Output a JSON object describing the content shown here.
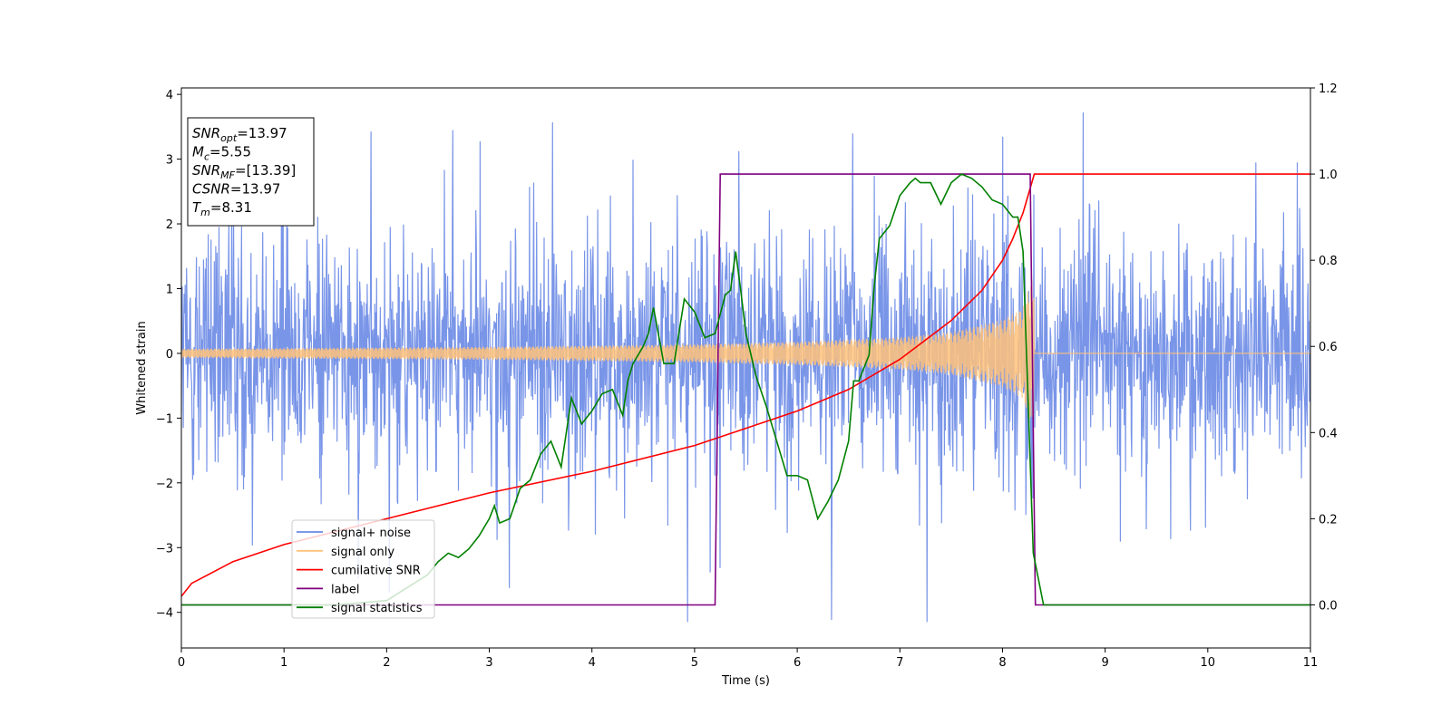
{
  "chart_data": {
    "type": "line",
    "xlabel": "Time (s)",
    "ylabel": "Whitened strain",
    "xlim": [
      0,
      11
    ],
    "ylim_left": [
      -4.55,
      4.1
    ],
    "ylim_right": [
      -0.1,
      1.2
    ],
    "x_ticks": [
      0,
      1,
      2,
      3,
      4,
      5,
      6,
      7,
      8,
      9,
      10,
      11
    ],
    "y_left_ticks": [
      -4,
      -3,
      -2,
      -1,
      0,
      1,
      2,
      3,
      4
    ],
    "y_right_ticks": [
      0.0,
      0.2,
      0.4,
      0.6,
      0.8,
      1.0,
      1.2
    ],
    "grid": false,
    "legend_position": "lower-left",
    "legend": [
      {
        "label": "signal+ noise",
        "color": "#6a8ae6"
      },
      {
        "label": "signal only",
        "color": "#ffc27a"
      },
      {
        "label": "cumilative SNR",
        "color": "#ff0000"
      },
      {
        "label": "label",
        "color": "#800080"
      },
      {
        "label": "signal statistics",
        "color": "#008000"
      }
    ],
    "annotation": [
      {
        "base": "SNR",
        "sub": "opt",
        "value": "=13.97"
      },
      {
        "base": "M",
        "sub": "c",
        "value": "=5.55"
      },
      {
        "base": "SNR",
        "sub": "MF",
        "value": "=[13.39]"
      },
      {
        "base": "CSNR",
        "sub": "",
        "value": "=13.97"
      },
      {
        "base": "T",
        "sub": "m",
        "value": "=8.31"
      }
    ],
    "series": [
      {
        "name": "signal+ noise",
        "axis": "left",
        "color": "#6a8ae6",
        "description_values": {
          "typical_range": [
            -2.5,
            2.8
          ],
          "extremes": [
            -4.15,
            3.72
          ]
        }
      },
      {
        "name": "signal only",
        "axis": "left",
        "color": "#ffc27a",
        "envelope": {
          "x": [
            0,
            1,
            2,
            3,
            4,
            5,
            6,
            7,
            7.5,
            8,
            8.2,
            8.31,
            11
          ],
          "amplitude": [
            0.07,
            0.08,
            0.09,
            0.1,
            0.12,
            0.14,
            0.18,
            0.25,
            0.33,
            0.52,
            0.7,
            1.3,
            0
          ]
        }
      },
      {
        "name": "cumilative SNR",
        "axis": "right",
        "color": "#ff0000",
        "x": [
          0,
          0.1,
          0.5,
          1,
          2,
          3,
          4,
          5,
          5.5,
          6,
          6.5,
          7,
          7.5,
          7.8,
          8.0,
          8.1,
          8.2,
          8.31,
          11
        ],
        "y": [
          0.02,
          0.05,
          0.1,
          0.14,
          0.2,
          0.26,
          0.31,
          0.37,
          0.41,
          0.45,
          0.5,
          0.57,
          0.66,
          0.73,
          0.8,
          0.85,
          0.91,
          1.0,
          1.0
        ]
      },
      {
        "name": "label",
        "axis": "right",
        "color": "#800080",
        "x": [
          0,
          5.2,
          5.25,
          8.27,
          8.32,
          11
        ],
        "y": [
          0,
          0,
          1,
          1,
          0,
          0
        ]
      },
      {
        "name": "signal statistics",
        "axis": "right",
        "color": "#008000",
        "x": [
          0,
          0.5,
          1,
          1.5,
          2.0,
          2.2,
          2.4,
          2.5,
          2.6,
          2.7,
          2.8,
          2.9,
          3.0,
          3.05,
          3.1,
          3.2,
          3.3,
          3.4,
          3.5,
          3.6,
          3.7,
          3.8,
          3.9,
          4.0,
          4.1,
          4.2,
          4.3,
          4.35,
          4.4,
          4.5,
          4.55,
          4.6,
          4.7,
          4.8,
          4.9,
          5.0,
          5.1,
          5.2,
          5.3,
          5.35,
          5.4,
          5.45,
          5.5,
          5.6,
          5.7,
          5.8,
          5.9,
          6.0,
          6.1,
          6.2,
          6.3,
          6.4,
          6.5,
          6.55,
          6.6,
          6.7,
          6.75,
          6.8,
          6.9,
          7.0,
          7.1,
          7.15,
          7.2,
          7.3,
          7.4,
          7.5,
          7.6,
          7.7,
          7.8,
          7.9,
          8.0,
          8.1,
          8.15,
          8.2,
          8.3,
          8.4,
          8.5,
          9,
          10,
          11
        ],
        "y": [
          0.0,
          0.0,
          0.0,
          0.0,
          0.01,
          0.04,
          0.07,
          0.1,
          0.12,
          0.11,
          0.13,
          0.16,
          0.2,
          0.23,
          0.19,
          0.2,
          0.27,
          0.29,
          0.35,
          0.38,
          0.32,
          0.48,
          0.42,
          0.45,
          0.49,
          0.5,
          0.44,
          0.52,
          0.56,
          0.6,
          0.63,
          0.69,
          0.56,
          0.56,
          0.71,
          0.68,
          0.62,
          0.63,
          0.72,
          0.73,
          0.82,
          0.73,
          0.63,
          0.53,
          0.46,
          0.38,
          0.3,
          0.3,
          0.29,
          0.2,
          0.24,
          0.29,
          0.38,
          0.52,
          0.52,
          0.58,
          0.74,
          0.85,
          0.88,
          0.95,
          0.98,
          0.99,
          0.98,
          0.98,
          0.93,
          0.98,
          1.0,
          0.99,
          0.97,
          0.94,
          0.93,
          0.9,
          0.9,
          0.82,
          0.12,
          0.0,
          0.0,
          0.0,
          0.0,
          0.0
        ]
      }
    ]
  }
}
